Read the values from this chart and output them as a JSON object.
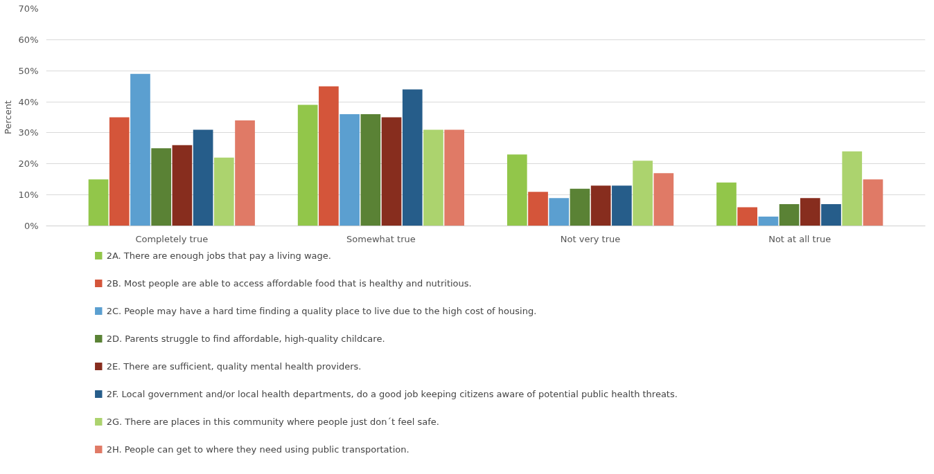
{
  "chart_data": {
    "type": "bar",
    "ylabel": "Percent",
    "categories": [
      "Completely true",
      "Somewhat true",
      "Not very true",
      "Not at all true"
    ],
    "series": [
      {
        "name": "2A. There are enough jobs that pay a living wage.",
        "color": "#92c64a",
        "values": [
          15,
          39,
          23,
          14
        ]
      },
      {
        "name": "2B. Most people are able to access affordable food that is healthy and nutritious.",
        "color": "#d4553a",
        "values": [
          35,
          45,
          11,
          6
        ]
      },
      {
        "name": "2C. People may have a hard time finding a quality place to live due to the high cost of housing.",
        "color": "#5b9fd0",
        "values": [
          49,
          36,
          9,
          3
        ]
      },
      {
        "name": "2D. Parents struggle to find affordable, high-quality childcare.",
        "color": "#5a8235",
        "values": [
          25,
          36,
          12,
          7
        ]
      },
      {
        "name": "2E. There are sufficient, quality mental health providers.",
        "color": "#872d1e",
        "values": [
          26,
          35,
          13,
          9
        ]
      },
      {
        "name": "2F. Local government and/or local health departments, do a good job keeping citizens aware of potential public health threats.",
        "color": "#265d8a",
        "values": [
          31,
          44,
          13,
          7
        ]
      },
      {
        "name": "2G. There are places in this community where people just don´t feel safe.",
        "color": "#acd36e",
        "values": [
          22,
          31,
          21,
          24
        ]
      },
      {
        "name": "2H. People can get to where they need using public transportation.",
        "color": "#e07a66",
        "values": [
          34,
          31,
          17,
          15
        ]
      }
    ],
    "ylim": [
      0,
      70
    ],
    "yticks": [
      {
        "value": 0,
        "label": "0%"
      },
      {
        "value": 10,
        "label": "10%"
      },
      {
        "value": 20,
        "label": "20%"
      },
      {
        "value": 30,
        "label": "30%"
      },
      {
        "value": 40,
        "label": "40%"
      },
      {
        "value": 50,
        "label": "50%"
      },
      {
        "value": 60,
        "label": "60%"
      },
      {
        "value": 70,
        "label": "70%"
      }
    ],
    "grid": "y",
    "legend": "bottom"
  }
}
